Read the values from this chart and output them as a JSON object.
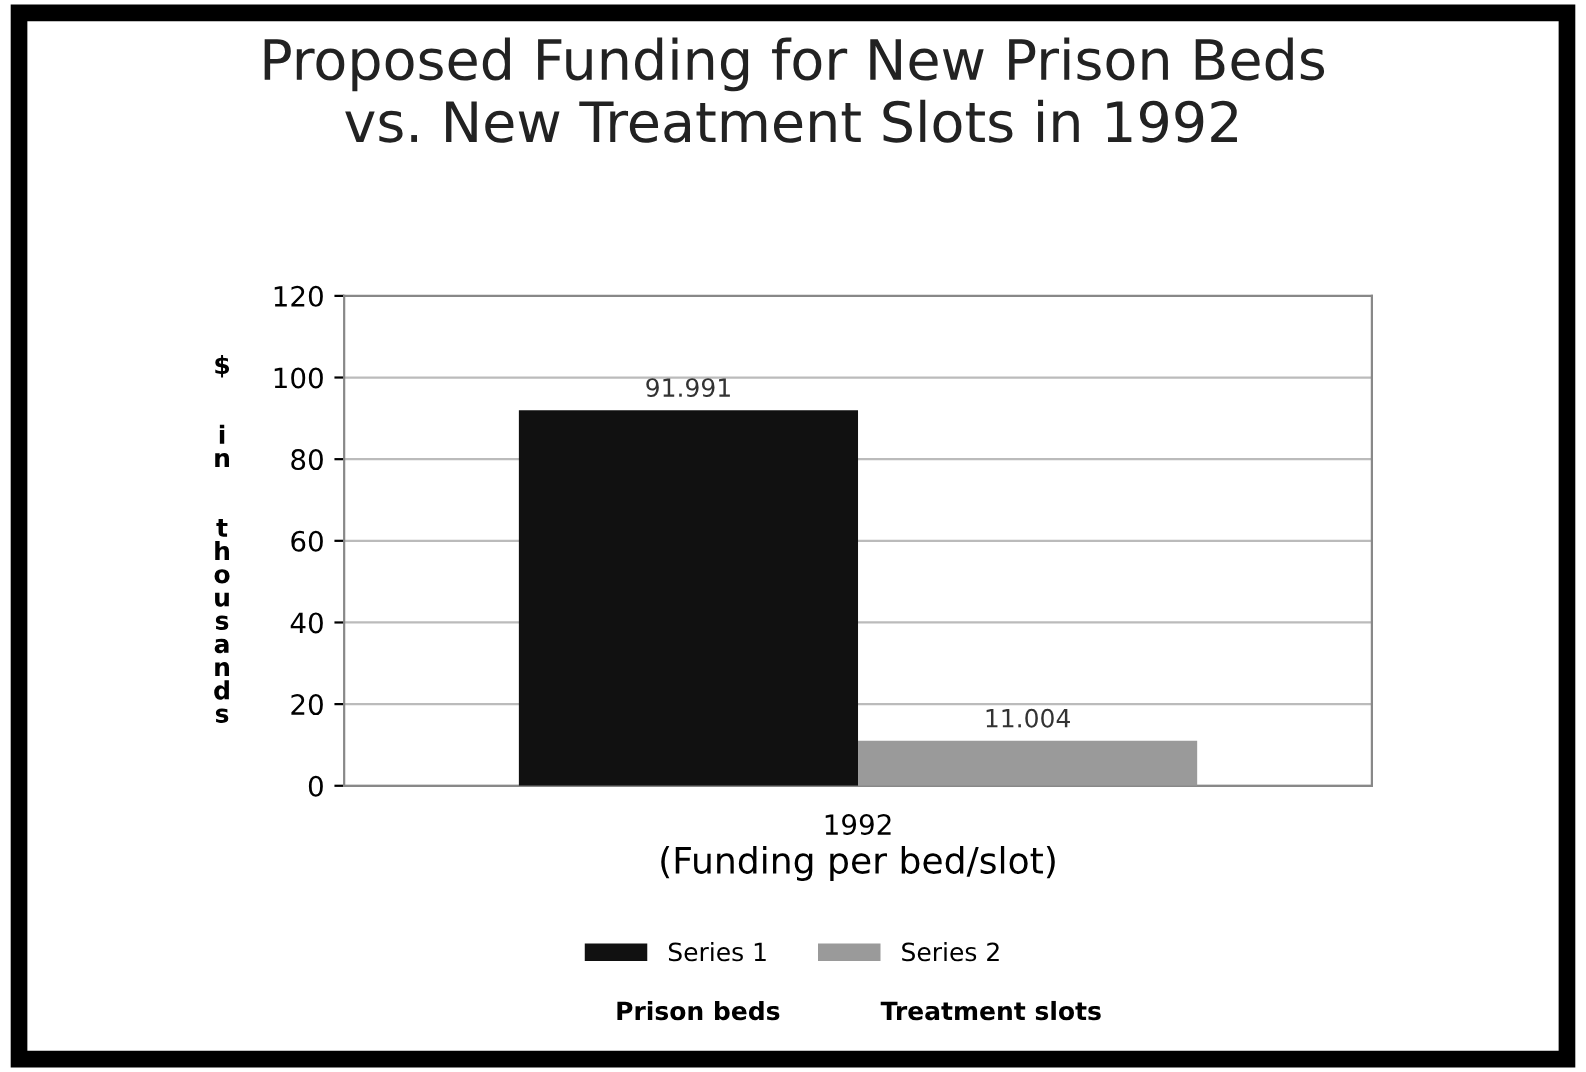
{
  "chart_data": {
    "type": "bar",
    "title": "Proposed Funding for New Prison Beds\nvs. New Treatment Slots in 1992",
    "categories": [
      "1992"
    ],
    "series": [
      {
        "name": "Series 1",
        "color": "#111111",
        "values": [
          91.991
        ]
      },
      {
        "name": "Series 2",
        "color": "#9a9a9a",
        "values": [
          11.004
        ]
      }
    ],
    "xlabel": "(Funding per bed/slot)",
    "ylabel": "$ in thousands",
    "ylim": [
      0,
      120
    ],
    "yticks": [
      0,
      20,
      40,
      60,
      80,
      100,
      120
    ],
    "grid": "y",
    "data_labels": true,
    "legend": "bottom",
    "annotations": [
      "Prison beds",
      "Treatment slots"
    ]
  }
}
